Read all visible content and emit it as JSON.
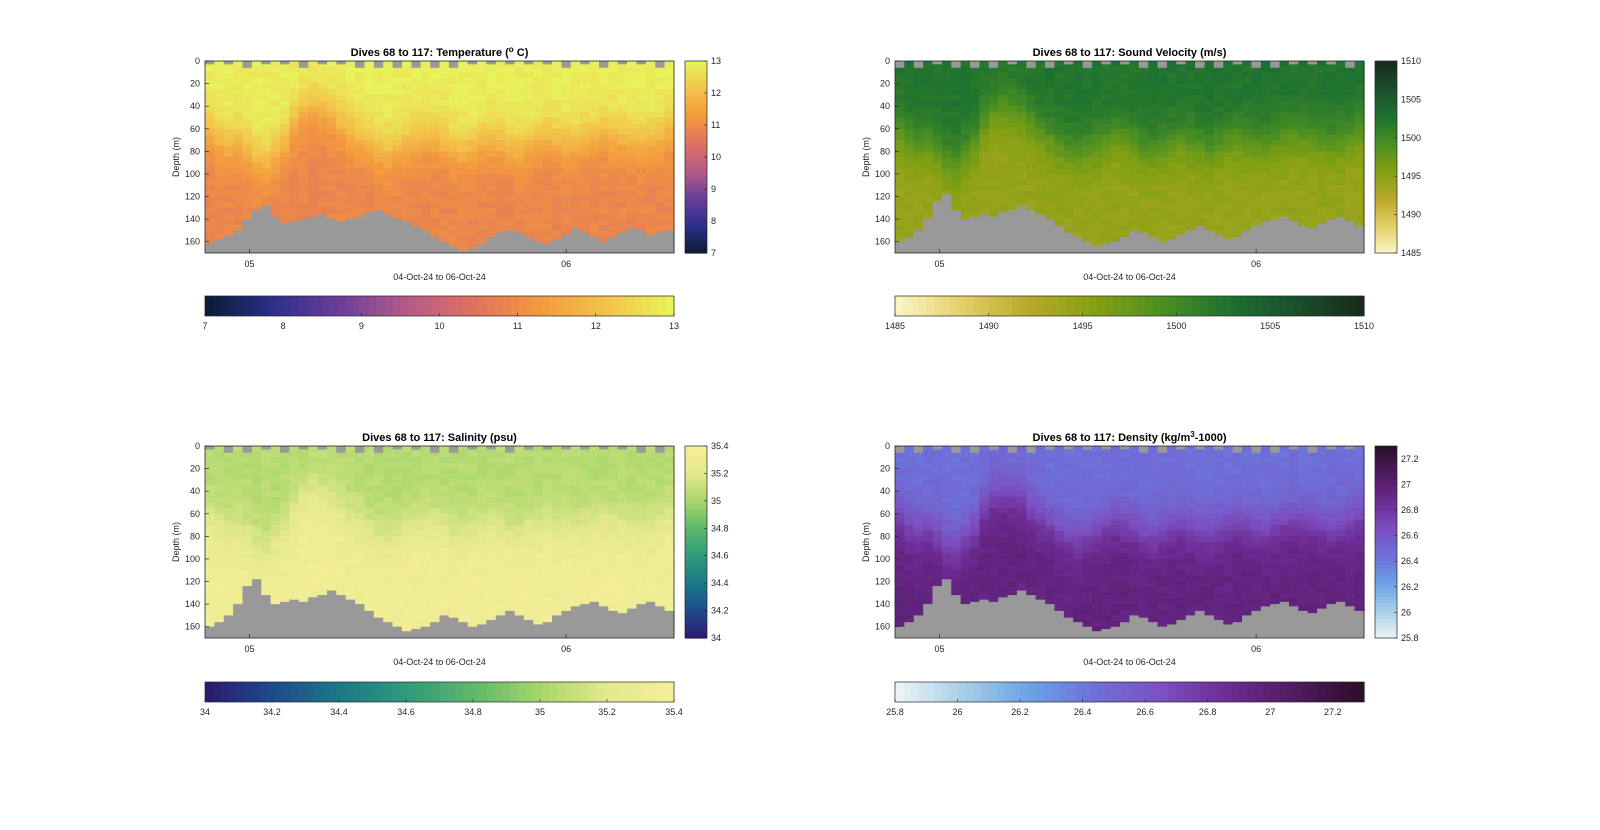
{
  "window": {
    "background": "#ffffff"
  },
  "chart_data": [
    {
      "type": "heatmap",
      "title_parts": [
        "Dives 68 to 117: Temperature (",
        "o",
        " C)"
      ],
      "variable": "Temperature",
      "ylabel": "Depth (m)",
      "xlabel": "04-Oct-24 to 06-Oct-24",
      "x_ticks": [
        "05",
        "06"
      ],
      "y_ticks": [
        0,
        20,
        40,
        60,
        80,
        100,
        120,
        140,
        160
      ],
      "ylim": [
        0,
        170
      ],
      "y_reversed": true,
      "clim": [
        7,
        13
      ],
      "colorbar_ticks": [
        7,
        8,
        9,
        10,
        11,
        12,
        13
      ],
      "horizontal_colorbar_ticks": [
        "7",
        "8",
        "9",
        "10",
        "11",
        "12",
        "13"
      ],
      "colormap": [
        "#0a1a33",
        "#2b2f8a",
        "#6a3e9a",
        "#b45a8a",
        "#e07060",
        "#f39a3e",
        "#f3c34a",
        "#e8f45c"
      ],
      "surface_value": 12.9,
      "deep_value": 10.9,
      "thermocline_depth_m": [
        62,
        70,
        74,
        72,
        78,
        88,
        92,
        82,
        72,
        54,
        44,
        40,
        42,
        46,
        55,
        62,
        68,
        75,
        80,
        82,
        78,
        74,
        70,
        66,
        68,
        72,
        78,
        80,
        76,
        72,
        70,
        72,
        76,
        78,
        74,
        70,
        68,
        70,
        72,
        74,
        70,
        66,
        64,
        66,
        68,
        70,
        72,
        70,
        66,
        62
      ],
      "bottom_depth_m": [
        162,
        158,
        155,
        150,
        140,
        132,
        128,
        138,
        144,
        142,
        140,
        138,
        136,
        140,
        142,
        140,
        138,
        134,
        132,
        136,
        140,
        142,
        146,
        150,
        156,
        160,
        164,
        168,
        166,
        162,
        156,
        152,
        150,
        152,
        156,
        160,
        162,
        158,
        154,
        148,
        152,
        156,
        160,
        156,
        152,
        148,
        150,
        154,
        152,
        150
      ],
      "missing_color": "#999999"
    },
    {
      "type": "heatmap",
      "title_parts": [
        "Dives 68 to 117: Sound Velocity (m/s)"
      ],
      "variable": "Sound Velocity",
      "ylabel": "Depth (m)",
      "xlabel": "04-Oct-24 to 06-Oct-24",
      "x_ticks": [
        "05",
        "06"
      ],
      "y_ticks": [
        0,
        20,
        40,
        60,
        80,
        100,
        120,
        140,
        160
      ],
      "ylim": [
        0,
        170
      ],
      "y_reversed": true,
      "clim": [
        1485,
        1510
      ],
      "colorbar_ticks": [
        1485,
        1490,
        1495,
        1500,
        1505,
        1510
      ],
      "horizontal_colorbar_ticks": [
        "1485",
        "1490",
        "1495",
        "1500",
        "1505",
        "1510"
      ],
      "colormap": [
        "#fbf6c8",
        "#e4cf68",
        "#b8a82a",
        "#84a013",
        "#4a8f22",
        "#1d7131",
        "#1a4f2c",
        "#182a1d"
      ],
      "surface_value": 1502.5,
      "deep_value": 1494.5,
      "thermocline_depth_m": [
        62,
        70,
        74,
        72,
        78,
        88,
        92,
        82,
        72,
        54,
        44,
        40,
        42,
        46,
        55,
        62,
        68,
        75,
        80,
        82,
        78,
        74,
        70,
        66,
        68,
        72,
        78,
        80,
        76,
        72,
        70,
        72,
        76,
        78,
        74,
        70,
        68,
        70,
        72,
        74,
        70,
        66,
        64,
        66,
        68,
        70,
        72,
        70,
        66,
        62
      ],
      "bottom_depth_m": [
        160,
        156,
        150,
        140,
        124,
        118,
        132,
        140,
        138,
        136,
        138,
        134,
        132,
        128,
        132,
        136,
        140,
        146,
        152,
        156,
        160,
        164,
        162,
        160,
        156,
        150,
        152,
        156,
        160,
        158,
        154,
        150,
        146,
        150,
        154,
        158,
        156,
        150,
        146,
        142,
        140,
        138,
        142,
        146,
        148,
        144,
        140,
        138,
        142,
        146
      ],
      "missing_color": "#999999"
    },
    {
      "type": "heatmap",
      "title_parts": [
        "Dives 68 to 117: Salinity (psu)"
      ],
      "variable": "Salinity",
      "ylabel": "Depth (m)",
      "xlabel": "04-Oct-24 to 06-Oct-24",
      "x_ticks": [
        "05",
        "06"
      ],
      "y_ticks": [
        0,
        20,
        40,
        60,
        80,
        100,
        120,
        140,
        160
      ],
      "ylim": [
        0,
        170
      ],
      "y_reversed": true,
      "clim": [
        34,
        35.4
      ],
      "colorbar_ticks": [
        34,
        34.2,
        34.4,
        34.6,
        34.8,
        35,
        35.2,
        35.4
      ],
      "horizontal_colorbar_ticks": [
        "34",
        "34.2",
        "34.4",
        "34.6",
        "34.8",
        "35",
        "35.2",
        "35.4"
      ],
      "colormap": [
        "#2a1a6e",
        "#1e4a8c",
        "#1b7888",
        "#2f9a7a",
        "#5cb86a",
        "#a7d66a",
        "#e3e88c",
        "#f7ef9a"
      ],
      "surface_value": 35.05,
      "deep_value": 35.33,
      "thermocline_depth_m": [
        62,
        70,
        74,
        72,
        78,
        88,
        92,
        82,
        72,
        54,
        44,
        40,
        42,
        46,
        55,
        62,
        68,
        75,
        80,
        82,
        78,
        74,
        70,
        66,
        68,
        72,
        78,
        80,
        76,
        72,
        70,
        72,
        76,
        78,
        74,
        70,
        68,
        70,
        72,
        74,
        70,
        66,
        64,
        66,
        68,
        70,
        72,
        70,
        66,
        62
      ],
      "bottom_depth_m": [
        160,
        156,
        150,
        140,
        124,
        118,
        132,
        140,
        138,
        136,
        138,
        134,
        132,
        128,
        132,
        136,
        140,
        146,
        152,
        156,
        160,
        164,
        162,
        160,
        156,
        150,
        152,
        156,
        160,
        158,
        154,
        150,
        146,
        150,
        154,
        158,
        156,
        150,
        146,
        142,
        140,
        138,
        142,
        146,
        148,
        144,
        140,
        138,
        142,
        146
      ],
      "missing_color": "#999999"
    },
    {
      "type": "heatmap",
      "title_parts": [
        "Dives 68 to 117: Density (kg/m",
        "3",
        "-1000)"
      ],
      "variable": "Density",
      "ylabel": "Depth (m)",
      "xlabel": "04-Oct-24 to 06-Oct-24",
      "x_ticks": [
        "05",
        "06"
      ],
      "y_ticks": [
        0,
        20,
        40,
        60,
        80,
        100,
        120,
        140,
        160
      ],
      "ylim": [
        0,
        170
      ],
      "y_reversed": true,
      "clim": [
        25.8,
        27.3
      ],
      "colorbar_ticks": [
        25.8,
        26,
        26.2,
        26.4,
        26.6,
        26.8,
        27,
        27.2
      ],
      "horizontal_colorbar_ticks": [
        "25.8",
        "26",
        "26.2",
        "26.4",
        "26.6",
        "26.8",
        "27",
        "27.2"
      ],
      "colormap": [
        "#eef6f8",
        "#a8cfe6",
        "#6aa3e6",
        "#6e6fd8",
        "#7c4fc0",
        "#6c2a92",
        "#4f1a5e",
        "#2a0e26"
      ],
      "surface_value": 26.45,
      "deep_value": 26.95,
      "thermocline_depth_m": [
        62,
        70,
        74,
        72,
        78,
        88,
        92,
        82,
        72,
        54,
        44,
        40,
        42,
        46,
        55,
        62,
        68,
        75,
        80,
        82,
        78,
        74,
        70,
        66,
        68,
        72,
        78,
        80,
        76,
        72,
        70,
        72,
        76,
        78,
        74,
        70,
        68,
        70,
        72,
        74,
        70,
        66,
        64,
        66,
        68,
        70,
        72,
        70,
        66,
        62
      ],
      "bottom_depth_m": [
        160,
        156,
        150,
        140,
        124,
        118,
        132,
        140,
        138,
        136,
        138,
        134,
        132,
        128,
        132,
        136,
        140,
        146,
        152,
        156,
        160,
        164,
        162,
        160,
        156,
        150,
        152,
        156,
        160,
        158,
        154,
        150,
        146,
        150,
        154,
        158,
        156,
        150,
        146,
        142,
        140,
        138,
        142,
        146,
        148,
        144,
        140,
        138,
        142,
        146
      ],
      "missing_color": "#999999"
    }
  ]
}
